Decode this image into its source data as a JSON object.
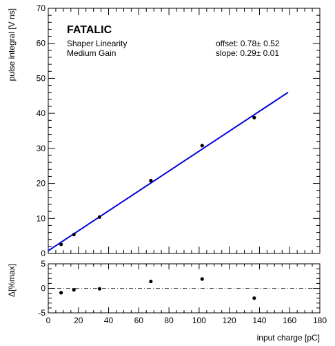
{
  "chart_data": [
    {
      "type": "scatter",
      "title": "FATALIC",
      "subtitle_lines": [
        "Shaper Linearity",
        "Medium Gain"
      ],
      "annotations": [
        "offset: 0.78± 0.52",
        "slope: 0.29± 0.01"
      ],
      "ylabel": "pulse integral [V ns]",
      "xlim": [
        0,
        180
      ],
      "ylim": [
        0,
        70
      ],
      "y_ticks": [
        0,
        10,
        20,
        30,
        40,
        50,
        60,
        70
      ],
      "grid": false,
      "points": [
        {
          "x": 8.5,
          "y": 2.6
        },
        {
          "x": 17,
          "y": 5.4
        },
        {
          "x": 34,
          "y": 10.4
        },
        {
          "x": 68,
          "y": 20.8
        },
        {
          "x": 102,
          "y": 30.8
        },
        {
          "x": 136.5,
          "y": 38.8
        }
      ],
      "fit_line": {
        "x": [
          0,
          159
        ],
        "y": [
          0.78,
          46.0
        ],
        "color": "#0000dd"
      }
    },
    {
      "type": "scatter",
      "xlabel": "input charge [pC]",
      "ylabel": "Δ[%max]",
      "xlim": [
        0,
        180
      ],
      "ylim": [
        -5,
        5
      ],
      "x_ticks": [
        0,
        20,
        40,
        60,
        80,
        100,
        120,
        140,
        160,
        180
      ],
      "y_ticks": [
        -5,
        0,
        5
      ],
      "grid": false,
      "reference_line": {
        "y": 0,
        "style": "dash-dot"
      },
      "points": [
        {
          "x": 8.5,
          "y": -0.9
        },
        {
          "x": 17,
          "y": -0.3
        },
        {
          "x": 34,
          "y": -0.1
        },
        {
          "x": 68,
          "y": 1.4
        },
        {
          "x": 102,
          "y": 1.9
        },
        {
          "x": 136.5,
          "y": -2.0
        }
      ]
    }
  ]
}
